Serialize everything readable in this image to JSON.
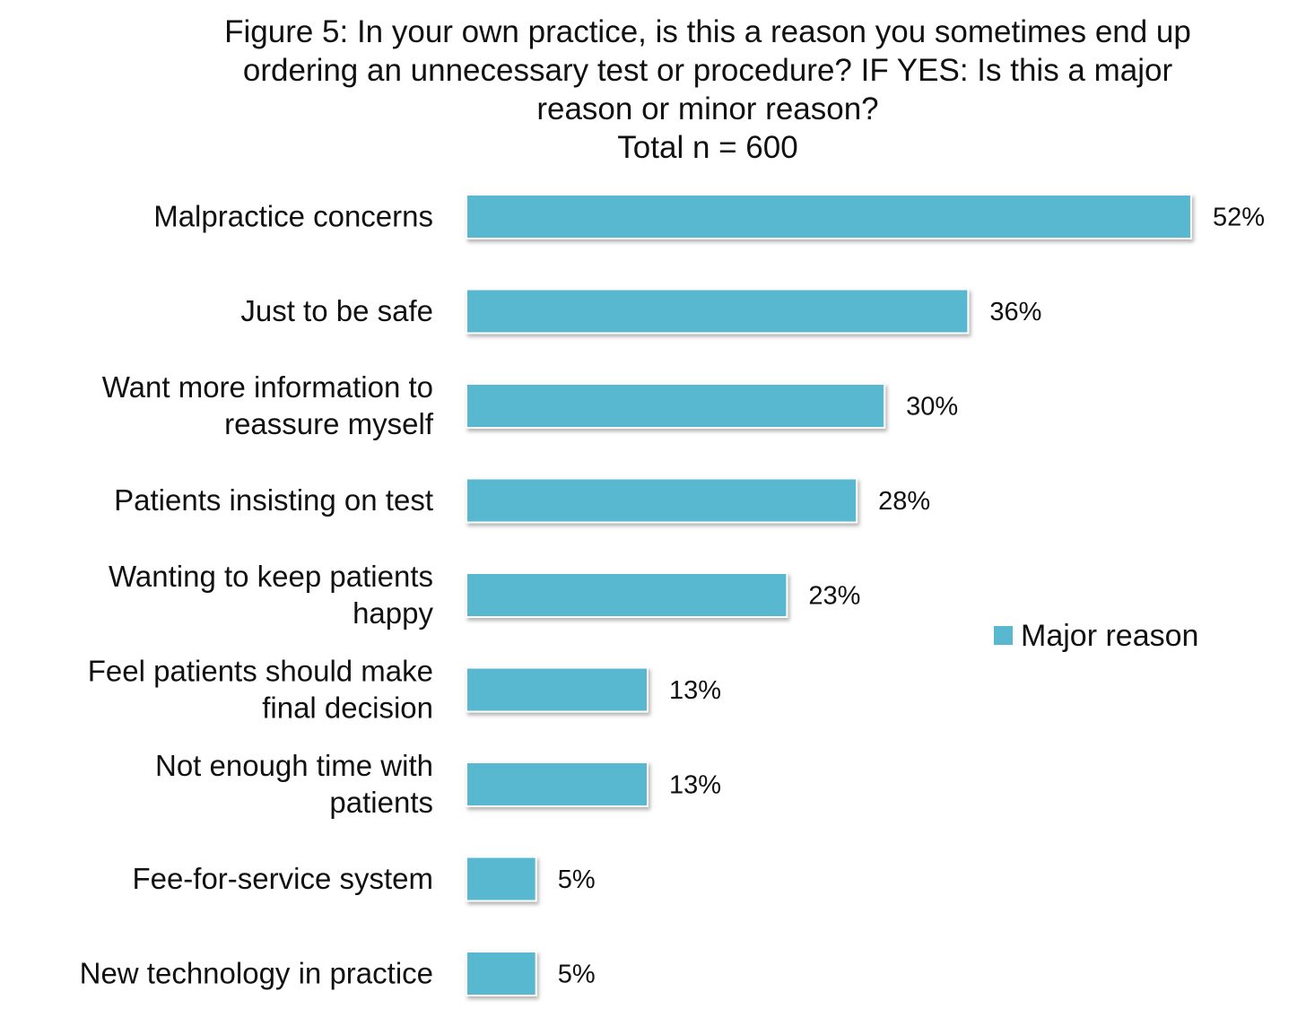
{
  "chart_data": {
    "type": "bar",
    "orientation": "horizontal",
    "title_lines": [
      "Figure 5: In your own practice, is this a reason you sometimes end up",
      "ordering an unnecessary test or procedure? IF YES: Is this a major",
      "reason or minor reason?",
      "Total n = 600"
    ],
    "categories": [
      [
        "Malpractice concerns"
      ],
      [
        "Just to be safe"
      ],
      [
        "Want more information to",
        "reassure myself"
      ],
      [
        "Patients insisting on test"
      ],
      [
        "Wanting to keep patients",
        "happy"
      ],
      [
        "Feel patients should make",
        "final decision"
      ],
      [
        "Not enough time with",
        "patients"
      ],
      [
        "Fee-for-service system"
      ],
      [
        "New technology in practice"
      ]
    ],
    "series": [
      {
        "name": "Major reason",
        "color": "#58B8D0",
        "values": [
          52,
          36,
          30,
          28,
          23,
          13,
          13,
          5,
          5
        ],
        "value_labels": [
          "52%",
          "36%",
          "30%",
          "28%",
          "23%",
          "13%",
          "13%",
          "5%",
          "5%"
        ]
      }
    ],
    "xlim": [
      0,
      52
    ],
    "grid": false,
    "axes_visible": false,
    "legend_position": "right"
  }
}
